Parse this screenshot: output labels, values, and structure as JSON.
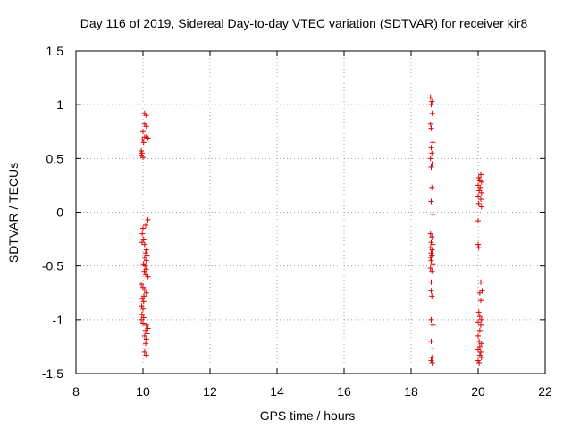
{
  "chart_data": {
    "type": "scatter",
    "title": "Day 116 of 2019, Sidereal Day-to-day VTEC variation (SDTVAR) for receiver kir8",
    "xlabel": "GPS time / hours",
    "ylabel": "SDTVAR / TECUs",
    "xlim": [
      8,
      22
    ],
    "ylim": [
      -1.5,
      1.5
    ],
    "xticks": [
      8,
      10,
      12,
      14,
      16,
      18,
      20,
      22
    ],
    "xtick_labels": [
      "8",
      "10",
      "12",
      "14",
      "16",
      "18",
      "20",
      "22"
    ],
    "yticks": [
      1.5,
      1,
      0.5,
      0,
      -0.5,
      -1,
      -1.5
    ],
    "ytick_labels": [
      "1.5",
      "1",
      "0.5",
      "0",
      "-0.5",
      "-1",
      "-1.5"
    ],
    "grid": true,
    "marker": "+",
    "color": "#dd0000",
    "series": [
      {
        "name": "SDTVAR",
        "points": [
          [
            10.05,
            0.92
          ],
          [
            10.1,
            0.9
          ],
          [
            10.05,
            0.82
          ],
          [
            10.1,
            0.8
          ],
          [
            10.0,
            0.75
          ],
          [
            10.05,
            0.7
          ],
          [
            10.1,
            0.7
          ],
          [
            10.15,
            0.69
          ],
          [
            9.98,
            0.68
          ],
          [
            10.02,
            0.65
          ],
          [
            9.95,
            0.57
          ],
          [
            9.97,
            0.55
          ],
          [
            9.95,
            0.53
          ],
          [
            10.0,
            0.51
          ],
          [
            10.15,
            -0.07
          ],
          [
            10.08,
            -0.12
          ],
          [
            10.0,
            -0.15
          ],
          [
            9.98,
            -0.2
          ],
          [
            10.02,
            -0.25
          ],
          [
            9.97,
            -0.28
          ],
          [
            10.05,
            -0.3
          ],
          [
            10.1,
            -0.35
          ],
          [
            10.08,
            -0.38
          ],
          [
            10.12,
            -0.4
          ],
          [
            10.05,
            -0.42
          ],
          [
            10.1,
            -0.45
          ],
          [
            10.02,
            -0.48
          ],
          [
            10.06,
            -0.5
          ],
          [
            10.1,
            -0.53
          ],
          [
            10.04,
            -0.55
          ],
          [
            10.08,
            -0.58
          ],
          [
            10.15,
            -0.6
          ],
          [
            9.95,
            -0.67
          ],
          [
            10.0,
            -0.7
          ],
          [
            10.05,
            -0.72
          ],
          [
            10.1,
            -0.75
          ],
          [
            10.03,
            -0.78
          ],
          [
            9.98,
            -0.8
          ],
          [
            10.02,
            -0.83
          ],
          [
            9.96,
            -0.87
          ],
          [
            10.0,
            -0.9
          ],
          [
            9.97,
            -0.95
          ],
          [
            10.02,
            -0.98
          ],
          [
            9.95,
            -1.0
          ],
          [
            10.0,
            -1.03
          ],
          [
            10.1,
            -1.05
          ],
          [
            10.15,
            -1.08
          ],
          [
            10.08,
            -1.1
          ],
          [
            10.12,
            -1.13
          ],
          [
            10.05,
            -1.15
          ],
          [
            10.1,
            -1.18
          ],
          [
            10.08,
            -1.22
          ],
          [
            10.12,
            -1.27
          ],
          [
            10.05,
            -1.3
          ],
          [
            10.1,
            -1.33
          ],
          [
            18.58,
            1.07
          ],
          [
            18.62,
            1.03
          ],
          [
            18.6,
            1.0
          ],
          [
            18.63,
            0.92
          ],
          [
            18.58,
            0.82
          ],
          [
            18.6,
            0.78
          ],
          [
            18.65,
            0.65
          ],
          [
            18.6,
            0.6
          ],
          [
            18.62,
            0.55
          ],
          [
            18.58,
            0.5
          ],
          [
            18.63,
            0.45
          ],
          [
            18.6,
            0.42
          ],
          [
            18.62,
            0.23
          ],
          [
            18.6,
            0.1
          ],
          [
            18.65,
            -0.02
          ],
          [
            18.58,
            -0.2
          ],
          [
            18.62,
            -0.23
          ],
          [
            18.6,
            -0.28
          ],
          [
            18.65,
            -0.3
          ],
          [
            18.58,
            -0.33
          ],
          [
            18.63,
            -0.35
          ],
          [
            18.6,
            -0.38
          ],
          [
            18.62,
            -0.4
          ],
          [
            18.58,
            -0.42
          ],
          [
            18.6,
            -0.45
          ],
          [
            18.65,
            -0.48
          ],
          [
            18.58,
            -0.52
          ],
          [
            18.62,
            -0.55
          ],
          [
            18.6,
            -0.65
          ],
          [
            18.6,
            -0.73
          ],
          [
            18.62,
            -0.78
          ],
          [
            18.6,
            -1.0
          ],
          [
            18.65,
            -1.05
          ],
          [
            18.6,
            -1.2
          ],
          [
            18.65,
            -1.27
          ],
          [
            18.62,
            -1.35
          ],
          [
            18.6,
            -1.38
          ],
          [
            18.63,
            -1.4
          ],
          [
            20.08,
            0.35
          ],
          [
            20.02,
            0.32
          ],
          [
            20.05,
            0.3
          ],
          [
            20.1,
            0.28
          ],
          [
            20.0,
            0.25
          ],
          [
            20.06,
            0.23
          ],
          [
            20.03,
            0.2
          ],
          [
            20.1,
            0.18
          ],
          [
            20.0,
            0.15
          ],
          [
            20.08,
            0.12
          ],
          [
            20.02,
            0.08
          ],
          [
            20.1,
            0.05
          ],
          [
            20.0,
            -0.08
          ],
          [
            20.0,
            -0.3
          ],
          [
            20.02,
            -0.33
          ],
          [
            20.08,
            -0.65
          ],
          [
            20.12,
            -0.73
          ],
          [
            20.05,
            -0.75
          ],
          [
            20.08,
            -0.82
          ],
          [
            20.02,
            -0.93
          ],
          [
            20.05,
            -0.97
          ],
          [
            20.1,
            -1.0
          ],
          [
            20.0,
            -1.02
          ],
          [
            20.08,
            -1.05
          ],
          [
            20.05,
            -1.1
          ],
          [
            20.0,
            -1.15
          ],
          [
            20.03,
            -1.2
          ],
          [
            20.1,
            -1.22
          ],
          [
            20.05,
            -1.25
          ],
          [
            20.0,
            -1.28
          ],
          [
            20.08,
            -1.3
          ],
          [
            20.05,
            -1.33
          ],
          [
            20.1,
            -1.35
          ],
          [
            20.0,
            -1.38
          ],
          [
            20.03,
            -1.4
          ]
        ]
      }
    ]
  }
}
